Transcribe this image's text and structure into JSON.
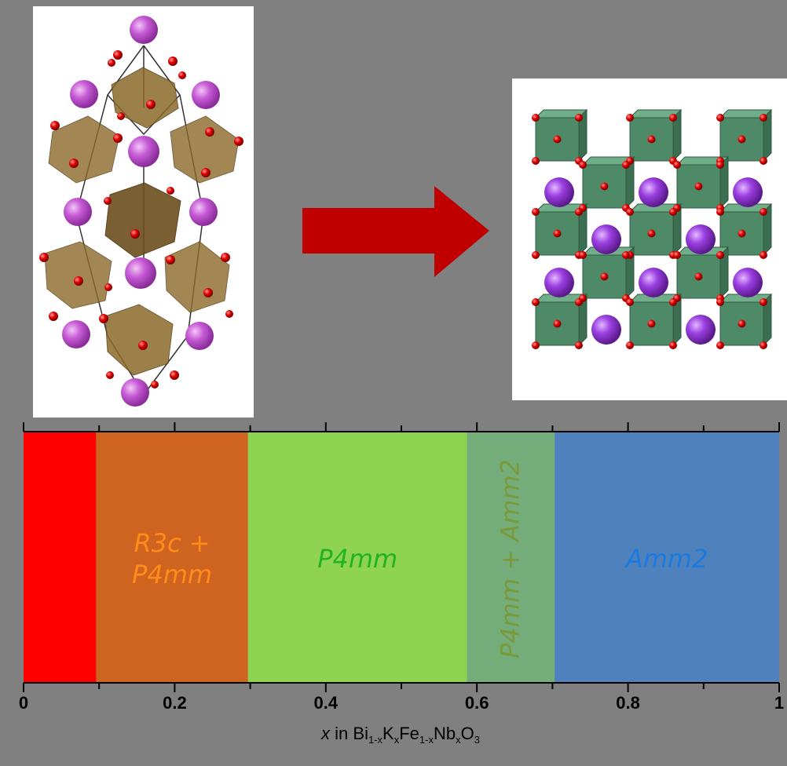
{
  "arrow": {
    "color": "#c00000",
    "icon": "right-arrow-icon"
  },
  "structures": {
    "left": {
      "name": "rhombohedral-cell",
      "octahedron_color": "#8b6a2b",
      "a_site_color": "#c75bd6",
      "oxygen_color": "#e00000"
    },
    "right": {
      "name": "orthorhombic-cell",
      "octahedron_color": "#4f8a68",
      "a_site_color": "#9a3ee0",
      "oxygen_color": "#e00000"
    }
  },
  "chart_data": {
    "type": "phase-diagram",
    "xlim": [
      0,
      1
    ],
    "ticks": [
      0,
      0.2,
      0.4,
      0.6,
      0.8,
      1
    ],
    "tick_labels": [
      "0",
      "0.2",
      "0.4",
      "0.6",
      "0.8",
      "1"
    ],
    "minor_ticks": [
      0.1,
      0.3,
      0.5,
      0.7,
      0.9
    ],
    "xlabel": {
      "parts": [
        {
          "text": "x",
          "style": "italic"
        },
        {
          "text": " in Bi",
          "style": "normal"
        },
        {
          "text": "1-x",
          "style": "sub"
        },
        {
          "text": "K",
          "style": "normal"
        },
        {
          "text": "x",
          "style": "sub"
        },
        {
          "text": "Fe",
          "style": "normal"
        },
        {
          "text": "1-x",
          "style": "sub"
        },
        {
          "text": "Nb",
          "style": "normal"
        },
        {
          "text": "x",
          "style": "sub"
        },
        {
          "text": "O",
          "style": "normal"
        },
        {
          "text": "3",
          "style": "sub"
        }
      ]
    },
    "regions": [
      {
        "from": 0.0,
        "to": 0.096,
        "color": "#ff0000",
        "label_lines": [],
        "label_color": "#ff0000",
        "rotate": false
      },
      {
        "from": 0.096,
        "to": 0.297,
        "color": "#cf6320",
        "label_lines": [
          "R3c +",
          "P4mm"
        ],
        "label_color": "#ff8c1a",
        "rotate": false
      },
      {
        "from": 0.297,
        "to": 0.587,
        "color": "#8fd450",
        "label_lines": [
          "P4mm"
        ],
        "label_color": "#22b222",
        "rotate": false
      },
      {
        "from": 0.587,
        "to": 0.703,
        "color": "#74ac7a",
        "label_lines": [
          "P4mm + Amm2"
        ],
        "label_color": "#7a9a3a",
        "rotate": true
      },
      {
        "from": 0.703,
        "to": 1.0,
        "color": "#4f81bd",
        "label_lines": [
          "Amm2"
        ],
        "label_color": "#1a7ae0",
        "rotate": false
      }
    ]
  }
}
